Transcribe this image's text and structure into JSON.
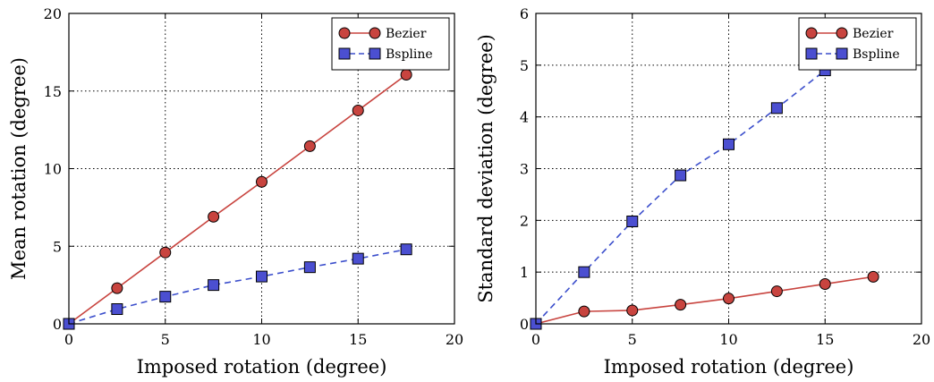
{
  "colors": {
    "bezier_line": "#c8443f",
    "bezier_marker": "#c8443f",
    "bspline_line": "#3c4fcc",
    "bspline_marker": "#4b4fd1",
    "grid": "#000000",
    "frame": "#000000"
  },
  "chart_data": [
    {
      "type": "line",
      "title": "",
      "xlabel": "Imposed rotation (degree)",
      "ylabel": "Mean rotation (degree)",
      "xlim": [
        0,
        20
      ],
      "ylim": [
        0,
        20
      ],
      "xticks": [
        0,
        5,
        10,
        15,
        20
      ],
      "yticks": [
        0,
        5,
        10,
        15,
        20
      ],
      "xtick_labels": [
        "0",
        "5",
        "10",
        "15",
        "20"
      ],
      "ytick_labels": [
        "0",
        "5",
        "10",
        "15",
        "20"
      ],
      "grid": true,
      "legend_position": "top-right",
      "series": [
        {
          "name": "Bezier",
          "marker": "circle",
          "linestyle": "solid",
          "x": [
            0,
            2.5,
            5,
            7.5,
            10,
            12.5,
            15,
            17.5
          ],
          "values": [
            0,
            2.3,
            4.6,
            6.9,
            9.15,
            11.45,
            13.75,
            16.05
          ]
        },
        {
          "name": "Bspline",
          "marker": "square",
          "linestyle": "dashed",
          "x": [
            0,
            2.5,
            5,
            7.5,
            10,
            12.5,
            15,
            17.5
          ],
          "values": [
            0,
            0.95,
            1.75,
            2.5,
            3.05,
            3.65,
            4.2,
            4.8
          ]
        }
      ]
    },
    {
      "type": "line",
      "title": "",
      "xlabel": "Imposed rotation (degree)",
      "ylabel": "Standard deviation (degree)",
      "xlim": [
        0,
        20
      ],
      "ylim": [
        0,
        6
      ],
      "xticks": [
        0,
        5,
        10,
        15,
        20
      ],
      "yticks": [
        0,
        1,
        2,
        3,
        4,
        5,
        6
      ],
      "xtick_labels": [
        "0",
        "5",
        "10",
        "15",
        "20"
      ],
      "ytick_labels": [
        "0",
        "1",
        "2",
        "3",
        "4",
        "5",
        "6"
      ],
      "grid": true,
      "legend_position": "top-right",
      "series": [
        {
          "name": "Bezier",
          "marker": "circle",
          "linestyle": "solid",
          "x": [
            0,
            2.5,
            5,
            7.5,
            10,
            12.5,
            15,
            17.5
          ],
          "values": [
            0,
            0.24,
            0.26,
            0.37,
            0.49,
            0.63,
            0.77,
            0.91
          ]
        },
        {
          "name": "Bspline",
          "marker": "square",
          "linestyle": "dashed",
          "x": [
            0,
            2.5,
            5,
            7.5,
            10,
            12.5,
            15,
            17.5
          ],
          "values": [
            0,
            1.0,
            1.98,
            2.87,
            3.47,
            4.17,
            4.9,
            5.6
          ]
        }
      ]
    }
  ]
}
